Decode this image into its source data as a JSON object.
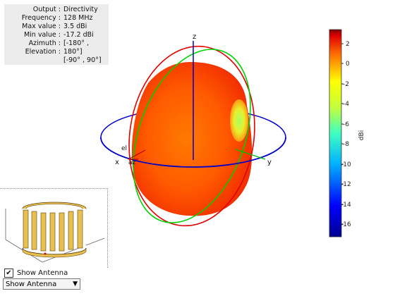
{
  "info": {
    "rows": [
      {
        "label": "Output :",
        "value": "Directivity"
      },
      {
        "label": "Frequency :",
        "value": "128 MHz"
      },
      {
        "label": "Max value :",
        "value": "3.5 dBi"
      },
      {
        "label": "Min value :",
        "value": "-17.2 dBi"
      },
      {
        "label": "Azimuth :",
        "value": "[-180° ,"
      },
      {
        "label": "Elevation :",
        "value": "180°]"
      },
      {
        "label": "",
        "value": "[-90° , 90°]"
      }
    ]
  },
  "axes": {
    "x": "x",
    "y": "y",
    "z": "z",
    "el": "el",
    "az": "az"
  },
  "colorbar": {
    "ticks": [
      "2",
      "0",
      "-2",
      "-4",
      "-6",
      "-8",
      "-10",
      "-12",
      "-14",
      "-16"
    ],
    "unit": "dBi"
  },
  "antenna_panel": {
    "checkbox_label": "Show Antenna",
    "checkbox_checked": "✔",
    "dropdown_value": "Show Antenna"
  }
}
